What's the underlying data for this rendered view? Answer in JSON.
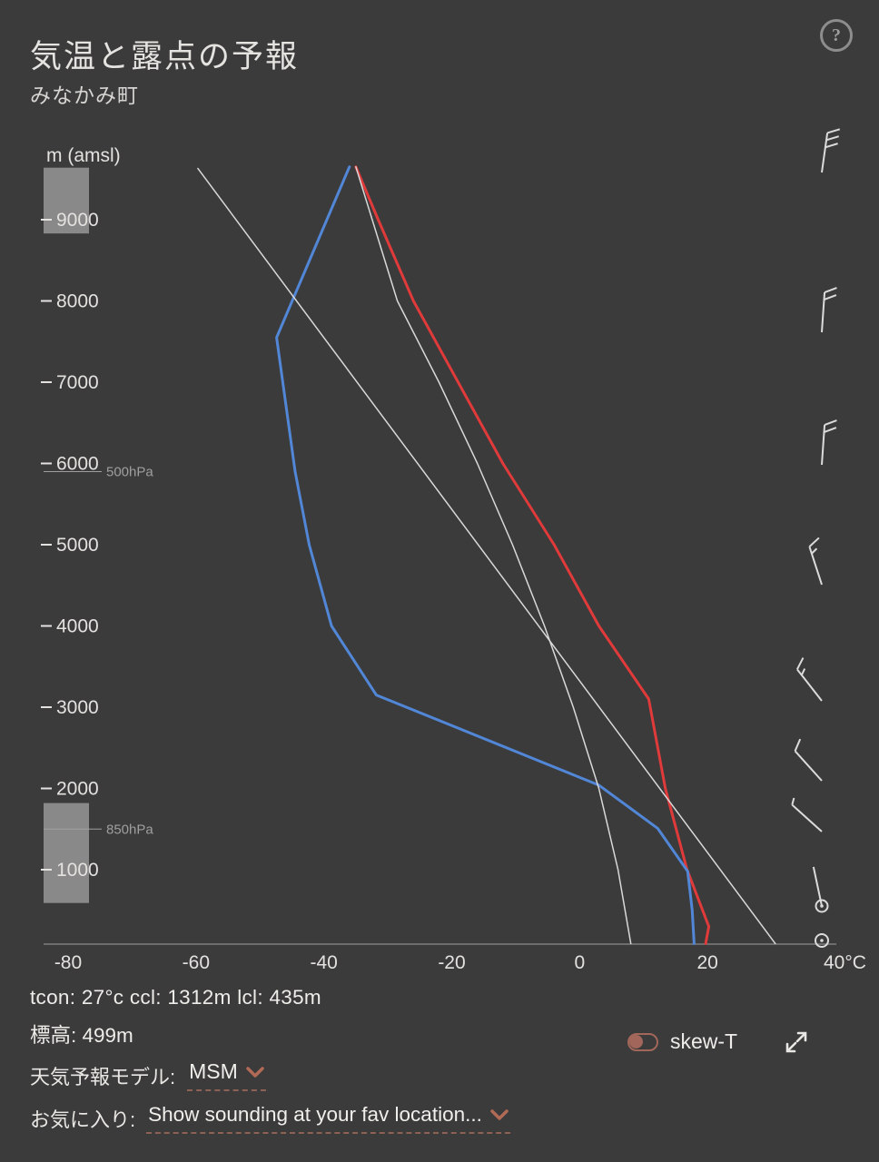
{
  "header": {
    "title": "気温と露点の予報",
    "subtitle": "みなかみ町",
    "help": "?"
  },
  "footer": {
    "stats": "tcon: 27°c ccl: 1312m lcl: 435m",
    "elevation": "標高: 499m",
    "skewt_label": "skew-T",
    "model_label": "天気予報モデル:",
    "model_value": "MSM",
    "fav_label": "お気に入り:",
    "fav_value": "Show sounding at your fav location..."
  },
  "colors": {
    "background": "#3b3b3c",
    "text": "#e4e2df",
    "muted": "#9f9f9f",
    "temperature": "#e03a3a",
    "dewpoint": "#5187d6",
    "reference": "#d9d9d9",
    "accent": "#a2675a"
  },
  "chart_data": {
    "type": "line",
    "title": "気温と露点の予報 (vertical sounding, temperature & dew point vs altitude)",
    "xlabel": "°C",
    "ylabel": "m (amsl)",
    "xlim": [
      -80,
      40
    ],
    "ylim": [
      80,
      9650
    ],
    "x_ticks": [
      "-80",
      "-60",
      "-40",
      "-20",
      "0",
      "20",
      "40°C"
    ],
    "x_tick_values": [
      -80,
      -60,
      -40,
      -20,
      0,
      20,
      40
    ],
    "y_ticks": [
      9000,
      8000,
      7000,
      6000,
      5000,
      4000,
      3000,
      2000,
      1000
    ],
    "y_axis_label": "m (amsl)",
    "pressure_markers": [
      {
        "label": "500hPa",
        "height_m": 5900
      },
      {
        "label": "850hPa",
        "height_m": 1500
      }
    ],
    "series": [
      {
        "name": "temperature",
        "color": "temperature",
        "width": 3,
        "points": [
          [
            -35,
            9650
          ],
          [
            -31.5,
            9000
          ],
          [
            -26,
            8000
          ],
          [
            -19,
            7000
          ],
          [
            -12,
            6000
          ],
          [
            -4,
            5000
          ],
          [
            3,
            4000
          ],
          [
            10.8,
            3100
          ],
          [
            13.4,
            2000
          ],
          [
            16.8,
            1000
          ],
          [
            20.2,
            300
          ],
          [
            19.7,
            90
          ]
        ]
      },
      {
        "name": "dewpoint",
        "color": "dewpoint",
        "width": 3,
        "points": [
          [
            -36,
            9650
          ],
          [
            -47.4,
            7550
          ],
          [
            -44.5,
            5900
          ],
          [
            -42.3,
            5000
          ],
          [
            -38.8,
            4000
          ],
          [
            -31.8,
            3150
          ],
          [
            3,
            2040
          ],
          [
            12.2,
            1510
          ],
          [
            16.9,
            980
          ],
          [
            17.6,
            500
          ],
          [
            17.9,
            90
          ]
        ]
      },
      {
        "name": "dry-adiabat",
        "color": "reference",
        "width": 1.5,
        "points": [
          [
            -59.7,
            9630
          ],
          [
            30.6,
            90
          ]
        ]
      },
      {
        "name": "moist-adiabat",
        "color": "reference",
        "width": 1.5,
        "points": [
          [
            -35,
            9650
          ],
          [
            -28.5,
            8000
          ],
          [
            -22,
            7000
          ],
          [
            -16,
            6000
          ],
          [
            -10.5,
            5000
          ],
          [
            -5.5,
            4000
          ],
          [
            -1,
            3000
          ],
          [
            3,
            2000
          ],
          [
            6,
            1000
          ],
          [
            8,
            90
          ]
        ]
      }
    ],
    "cloud_layers": [
      {
        "top_m": 9640,
        "bottom_m": 8830
      },
      {
        "top_m": 1820,
        "bottom_m": 590
      }
    ],
    "wind_barbs": [
      {
        "y": 190,
        "angle": 8,
        "full": 3,
        "half": 0
      },
      {
        "y": 366,
        "angle": 4,
        "full": 2,
        "half": 0
      },
      {
        "y": 512,
        "angle": 4,
        "full": 2,
        "half": 0
      },
      {
        "y": 644,
        "angle": -18,
        "full": 1,
        "half": 1
      },
      {
        "y": 772,
        "angle": -38,
        "full": 1,
        "half": 1
      },
      {
        "y": 860,
        "angle": -42,
        "full": 1,
        "half": 0
      },
      {
        "y": 916,
        "angle": -48,
        "full": 0,
        "half": 1
      },
      {
        "y": 998,
        "angle": -12,
        "full": 0,
        "half": 0,
        "circle": true
      },
      {
        "y": 1036,
        "calm": true
      }
    ]
  }
}
